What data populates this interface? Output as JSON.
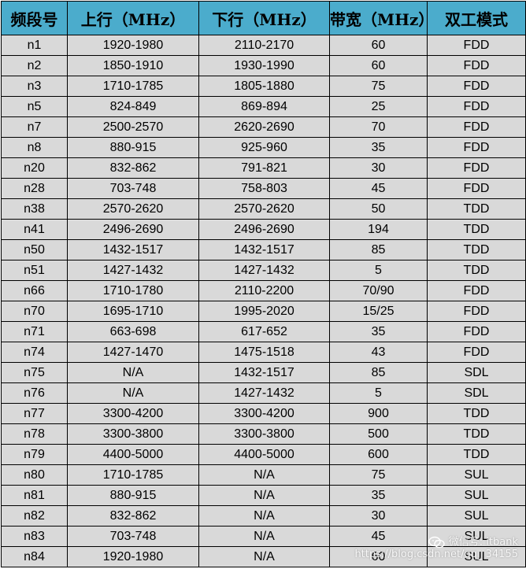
{
  "table": {
    "headers": [
      "频段号",
      "上行（MHz）",
      "下行（MHz）",
      "带宽（MHz）",
      "双工模式"
    ],
    "rows": [
      [
        "n1",
        "1920-1980",
        "2110-2170",
        "60",
        "FDD"
      ],
      [
        "n2",
        "1850-1910",
        "1930-1990",
        "60",
        "FDD"
      ],
      [
        "n3",
        "1710-1785",
        "1805-1880",
        "75",
        "FDD"
      ],
      [
        "n5",
        "824-849",
        "869-894",
        "25",
        "FDD"
      ],
      [
        "n7",
        "2500-2570",
        "2620-2690",
        "70",
        "FDD"
      ],
      [
        "n8",
        "880-915",
        "925-960",
        "35",
        "FDD"
      ],
      [
        "n20",
        "832-862",
        "791-821",
        "30",
        "FDD"
      ],
      [
        "n28",
        "703-748",
        "758-803",
        "45",
        "FDD"
      ],
      [
        "n38",
        "2570-2620",
        "2570-2620",
        "50",
        "TDD"
      ],
      [
        "n41",
        "2496-2690",
        "2496-2690",
        "194",
        "TDD"
      ],
      [
        "n50",
        "1432-1517",
        "1432-1517",
        "85",
        "TDD"
      ],
      [
        "n51",
        "1427-1432",
        "1427-1432",
        "5",
        "TDD"
      ],
      [
        "n66",
        "1710-1780",
        "2110-2200",
        "70/90",
        "FDD"
      ],
      [
        "n70",
        "1695-1710",
        "1995-2020",
        "15/25",
        "FDD"
      ],
      [
        "n71",
        "663-698",
        "617-652",
        "35",
        "FDD"
      ],
      [
        "n74",
        "1427-1470",
        "1475-1518",
        "43",
        "FDD"
      ],
      [
        "n75",
        "N/A",
        "1432-1517",
        "85",
        "SDL"
      ],
      [
        "n76",
        "N/A",
        "1427-1432",
        "5",
        "SDL"
      ],
      [
        "n77",
        "3300-4200",
        "3300-4200",
        "900",
        "TDD"
      ],
      [
        "n78",
        "3300-3800",
        "3300-3800",
        "500",
        "TDD"
      ],
      [
        "n79",
        "4400-5000",
        "4400-5000",
        "600",
        "TDD"
      ],
      [
        "n80",
        "1710-1785",
        "N/A",
        "75",
        "SUL"
      ],
      [
        "n81",
        "880-915",
        "N/A",
        "35",
        "SUL"
      ],
      [
        "n82",
        "832-862",
        "N/A",
        "30",
        "SUL"
      ],
      [
        "n83",
        "703-748",
        "N/A",
        "45",
        "SUL"
      ],
      [
        "n84",
        "1920-1980",
        "N/A",
        "60",
        "SUL"
      ]
    ]
  },
  "watermark": {
    "line1": "微信号: itbank",
    "line2": "https://blog.csdn.net/qq_ 34155",
    "icon": "wechat-icon"
  },
  "colors": {
    "header_bg": "#4baccc",
    "row_bg": "#d9d9d9",
    "border": "#000000"
  }
}
